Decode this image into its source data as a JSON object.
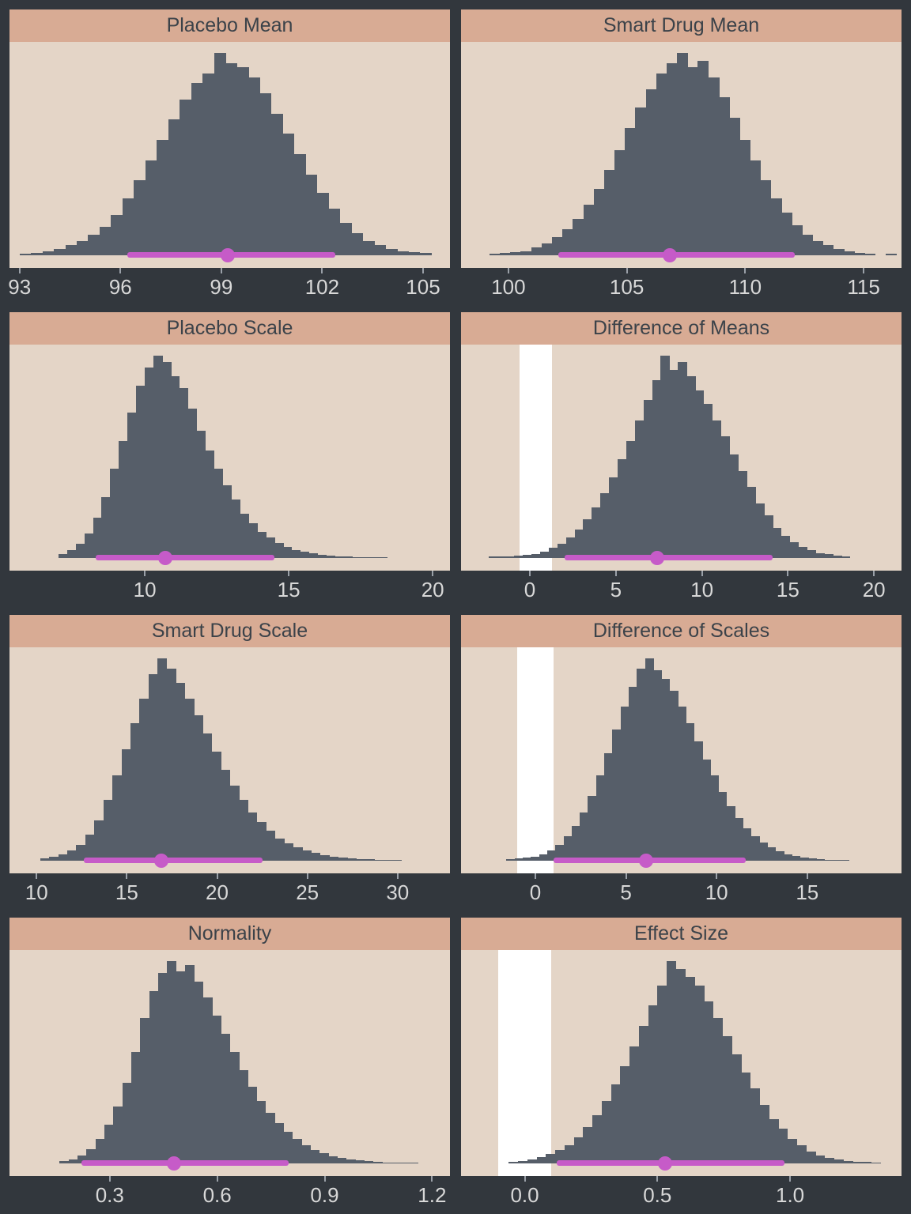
{
  "figure": {
    "layout": "2x4-posterior-histogram-grid",
    "columns": 2,
    "rows": 4
  },
  "theme": {
    "page_bg": "#32373d",
    "title_bg": "#d8ab94",
    "title_text": "#3b4249",
    "plot_bg": "#e4d5c7",
    "bar_color": "#565e69",
    "hdi_color": "#c65bc8",
    "rope_color": "#ffffff",
    "tick_text": "#d8d8d8"
  },
  "chart_data": [
    {
      "type": "bar",
      "title": "Placebo Mean",
      "xlim": [
        92.7,
        105.8
      ],
      "tick_values": [
        93,
        96,
        99,
        102,
        105
      ],
      "ticks": [
        "93",
        "96",
        "99",
        "102",
        "105"
      ],
      "bin_start": 93.0,
      "bin_width": 0.34,
      "heights": [
        0.006,
        0.01,
        0.02,
        0.03,
        0.05,
        0.07,
        0.1,
        0.14,
        0.2,
        0.28,
        0.37,
        0.47,
        0.57,
        0.67,
        0.77,
        0.85,
        0.9,
        1.0,
        0.95,
        0.93,
        0.88,
        0.8,
        0.7,
        0.6,
        0.5,
        0.4,
        0.31,
        0.23,
        0.16,
        0.11,
        0.07,
        0.05,
        0.03,
        0.02,
        0.015,
        0.01
      ],
      "hdi": [
        96.2,
        102.4
      ],
      "median": 99.2,
      "rope": null
    },
    {
      "type": "bar",
      "title": "Smart Drug Mean",
      "xlim": [
        98.0,
        116.6
      ],
      "tick_values": [
        100,
        105,
        110,
        115
      ],
      "ticks": [
        "100",
        "105",
        "110",
        "115"
      ],
      "bin_start": 99.2,
      "bin_width": 0.44,
      "heights": [
        0.006,
        0.01,
        0.015,
        0.02,
        0.04,
        0.06,
        0.09,
        0.13,
        0.18,
        0.25,
        0.33,
        0.42,
        0.52,
        0.63,
        0.73,
        0.82,
        0.9,
        0.95,
        1.0,
        0.93,
        0.96,
        0.88,
        0.78,
        0.68,
        0.57,
        0.47,
        0.37,
        0.28,
        0.21,
        0.15,
        0.1,
        0.07,
        0.05,
        0.03,
        0.02,
        0.012,
        0.008,
        0,
        0.006
      ],
      "hdi": [
        102.1,
        112.1
      ],
      "median": 106.8,
      "rope": null
    },
    {
      "type": "bar",
      "title": "Placebo Scale",
      "xlim": [
        5.3,
        20.6
      ],
      "tick_values": [
        10,
        15,
        20
      ],
      "ticks": [
        "10",
        "15",
        "20"
      ],
      "bin_start": 7.0,
      "bin_width": 0.3,
      "heights": [
        0.02,
        0.04,
        0.07,
        0.12,
        0.2,
        0.3,
        0.44,
        0.58,
        0.72,
        0.85,
        0.94,
        1.0,
        0.97,
        0.9,
        0.84,
        0.74,
        0.63,
        0.53,
        0.44,
        0.36,
        0.29,
        0.22,
        0.17,
        0.13,
        0.1,
        0.075,
        0.055,
        0.04,
        0.03,
        0.022,
        0.016,
        0.012,
        0.009,
        0.007,
        0.005,
        0.004,
        0.003,
        0.002
      ],
      "hdi": [
        8.3,
        14.5
      ],
      "median": 10.7,
      "rope": null
    },
    {
      "type": "bar",
      "title": "Difference of Means",
      "xlim": [
        -4.0,
        21.6
      ],
      "tick_values": [
        0,
        5,
        10,
        15,
        20
      ],
      "ticks": [
        "0",
        "5",
        "10",
        "15",
        "20"
      ],
      "bin_start": -2.4,
      "bin_width": 0.5,
      "heights": [
        0.006,
        0.006,
        0.008,
        0.01,
        0.015,
        0.02,
        0.03,
        0.05,
        0.07,
        0.1,
        0.14,
        0.19,
        0.25,
        0.32,
        0.4,
        0.49,
        0.58,
        0.68,
        0.78,
        0.88,
        1.0,
        0.93,
        0.97,
        0.9,
        0.83,
        0.76,
        0.68,
        0.6,
        0.51,
        0.43,
        0.35,
        0.27,
        0.21,
        0.15,
        0.11,
        0.08,
        0.055,
        0.04,
        0.025,
        0.018,
        0.012,
        0.008
      ],
      "hdi": [
        2.0,
        14.1
      ],
      "median": 7.4,
      "rope": [
        -0.6,
        1.3
      ]
    },
    {
      "type": "bar",
      "title": "Smart Drug Scale",
      "xlim": [
        8.5,
        32.9
      ],
      "tick_values": [
        10,
        15,
        20,
        25,
        30
      ],
      "ticks": [
        "10",
        "15",
        "20",
        "25",
        "30"
      ],
      "bin_start": 10.2,
      "bin_width": 0.5,
      "heights": [
        0.01,
        0.02,
        0.03,
        0.05,
        0.08,
        0.13,
        0.2,
        0.3,
        0.42,
        0.55,
        0.68,
        0.8,
        0.92,
        1.0,
        0.95,
        0.88,
        0.8,
        0.72,
        0.63,
        0.54,
        0.45,
        0.37,
        0.3,
        0.24,
        0.19,
        0.15,
        0.11,
        0.085,
        0.065,
        0.05,
        0.038,
        0.028,
        0.02,
        0.015,
        0.01,
        0.008,
        0.006,
        0.004,
        0.003,
        0.002
      ],
      "hdi": [
        12.6,
        22.5
      ],
      "median": 16.9,
      "rope": null
    },
    {
      "type": "bar",
      "title": "Difference of Scales",
      "xlim": [
        -4.1,
        20.2
      ],
      "tick_values": [
        0,
        5,
        10,
        15
      ],
      "ticks": [
        "0",
        "5",
        "10",
        "15"
      ],
      "bin_start": -1.6,
      "bin_width": 0.45,
      "heights": [
        0.006,
        0.01,
        0.015,
        0.02,
        0.03,
        0.05,
        0.08,
        0.12,
        0.17,
        0.24,
        0.32,
        0.42,
        0.53,
        0.65,
        0.76,
        0.86,
        0.95,
        1.0,
        0.94,
        0.9,
        0.84,
        0.76,
        0.68,
        0.59,
        0.5,
        0.42,
        0.34,
        0.27,
        0.21,
        0.16,
        0.12,
        0.09,
        0.065,
        0.047,
        0.033,
        0.023,
        0.016,
        0.011,
        0.008,
        0.005,
        0.004,
        0.003
      ],
      "hdi": [
        1.0,
        11.6
      ],
      "median": 6.1,
      "rope": [
        -1.0,
        1.0
      ]
    },
    {
      "type": "bar",
      "title": "Normality",
      "xlim": [
        0.02,
        1.25
      ],
      "tick_values": [
        0.3,
        0.6,
        0.9,
        1.2
      ],
      "ticks": [
        "0.3",
        "0.6",
        "0.9",
        "1.2"
      ],
      "bin_start": 0.16,
      "bin_width": 0.025,
      "heights": [
        0.01,
        0.02,
        0.04,
        0.07,
        0.12,
        0.19,
        0.28,
        0.4,
        0.55,
        0.72,
        0.85,
        0.94,
        1.0,
        0.95,
        0.98,
        0.9,
        0.82,
        0.73,
        0.64,
        0.55,
        0.46,
        0.38,
        0.31,
        0.25,
        0.2,
        0.155,
        0.12,
        0.09,
        0.068,
        0.05,
        0.037,
        0.027,
        0.02,
        0.014,
        0.01,
        0.007,
        0.005,
        0.004,
        0.003,
        0.002
      ],
      "hdi": [
        0.22,
        0.8
      ],
      "median": 0.48,
      "rope": null
    },
    {
      "type": "bar",
      "title": "Effect Size",
      "xlim": [
        -0.24,
        1.42
      ],
      "tick_values": [
        0.0,
        0.5,
        1.0
      ],
      "ticks": [
        "0.0",
        "0.5",
        "1.0"
      ],
      "bin_start": -0.06,
      "bin_width": 0.035,
      "heights": [
        0.008,
        0.012,
        0.02,
        0.03,
        0.045,
        0.065,
        0.09,
        0.13,
        0.18,
        0.24,
        0.31,
        0.39,
        0.48,
        0.58,
        0.68,
        0.78,
        0.88,
        1.0,
        0.96,
        0.92,
        0.88,
        0.8,
        0.72,
        0.63,
        0.54,
        0.45,
        0.37,
        0.29,
        0.22,
        0.17,
        0.12,
        0.09,
        0.06,
        0.04,
        0.028,
        0.02,
        0.013,
        0.009,
        0.006,
        0.004
      ],
      "hdi": [
        0.12,
        0.98
      ],
      "median": 0.53,
      "rope": [
        -0.1,
        0.1
      ]
    }
  ]
}
